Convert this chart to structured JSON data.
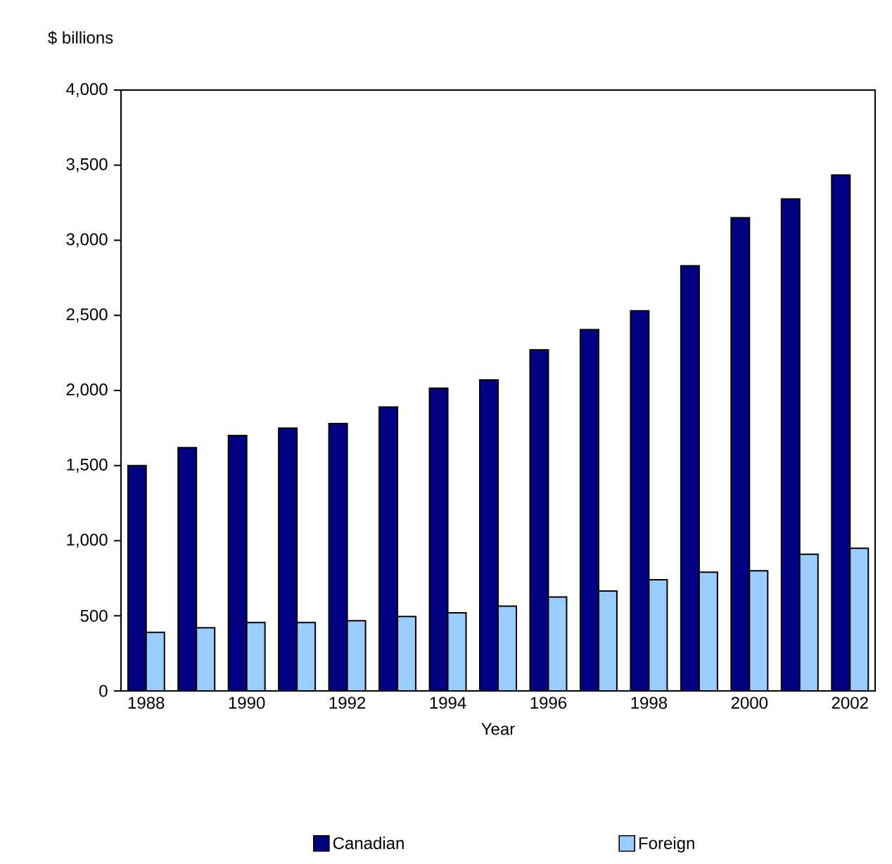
{
  "chart_data": {
    "type": "bar",
    "xlabel": "Year",
    "ylabel": "$ billions",
    "categories": [
      "1988",
      null,
      "1990",
      null,
      "1992",
      null,
      "1994",
      null,
      "1996",
      null,
      "1998",
      null,
      "2000",
      null,
      "2002"
    ],
    "series": [
      {
        "name": "Canadian",
        "color": "#000080",
        "values": [
          1500,
          1620,
          1700,
          1750,
          1780,
          1890,
          2015,
          2070,
          2270,
          2405,
          2530,
          2830,
          3150,
          3275,
          3435
        ]
      },
      {
        "name": "Foreign",
        "color": "#99ccff",
        "values": [
          390,
          420,
          455,
          455,
          467,
          495,
          520,
          565,
          625,
          665,
          740,
          790,
          800,
          910,
          950
        ]
      }
    ],
    "ylim": [
      0,
      4000
    ],
    "yticks": [
      0,
      {
        "value": 500,
        "label": "500"
      },
      {
        "value": 1000,
        "label": "1,000"
      },
      {
        "value": 1500,
        "label": "1,500"
      },
      {
        "value": 2000,
        "label": "2,000"
      },
      {
        "value": 2500,
        "label": "2,500"
      },
      {
        "value": 3000,
        "label": "3,000"
      },
      {
        "value": 3500,
        "label": "3,500"
      },
      {
        "value": 4000,
        "label": "4,000"
      }
    ],
    "legend": "bottom"
  }
}
